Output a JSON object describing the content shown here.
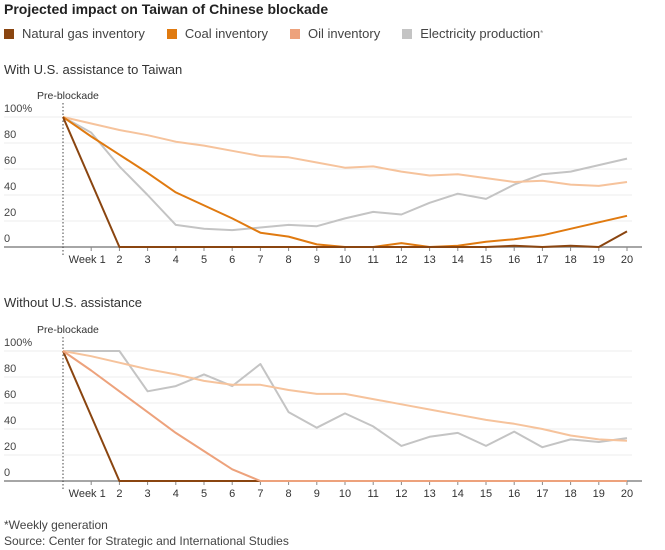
{
  "title": "Projected impact on Taiwan of Chinese blockade",
  "legend": [
    {
      "label": "Natural gas inventory",
      "color": "#8a4510"
    },
    {
      "label": "Coal inventory",
      "color": "#e07a10"
    },
    {
      "label": "Oil inventory",
      "color": "#eda27c"
    },
    {
      "label": "Electricity production",
      "color": "#c4c4c4",
      "footnote_mark": "*"
    }
  ],
  "footnote": "*Weekly generation",
  "source": "Source: Center for Strategic and International Studies",
  "chart_data": [
    {
      "type": "line",
      "title": "With U.S. assistance to Taiwan",
      "marker_label": "Pre-blockade",
      "x_tick_labels": [
        "Week 1",
        "2",
        "3",
        "4",
        "5",
        "6",
        "7",
        "8",
        "9",
        "10",
        "11",
        "12",
        "13",
        "14",
        "15",
        "16",
        "17",
        "18",
        "19",
        "20"
      ],
      "y_tick_labels": [
        "100%",
        "80",
        "60",
        "40",
        "20",
        "0"
      ],
      "ylim": [
        0,
        100
      ],
      "grid": true,
      "series": [
        {
          "name": "Electricity production",
          "color": "#c4c4c4",
          "values": [
            100,
            88,
            62,
            40,
            17,
            14,
            13,
            15,
            17,
            16,
            22,
            27,
            25,
            34,
            41,
            37,
            48,
            56,
            58,
            63,
            68
          ]
        },
        {
          "name": "",
          "color": "#f6c39c",
          "values": [
            100,
            95,
            90,
            86,
            81,
            78,
            74,
            70,
            69,
            65,
            61,
            62,
            58,
            55,
            56,
            53,
            50,
            51,
            48,
            47,
            50
          ]
        },
        {
          "name": "Coal inventory",
          "color": "#e07a10",
          "values": [
            100,
            85,
            71,
            57,
            42,
            32,
            22,
            11,
            8,
            2,
            0,
            0,
            3,
            0,
            1,
            4,
            6,
            9,
            14,
            19,
            24
          ]
        },
        {
          "name": "Natural gas inventory",
          "color": "#8a4510",
          "values": [
            100,
            50,
            0,
            0,
            0,
            0,
            0,
            0,
            0,
            0,
            0,
            0,
            0,
            0,
            0,
            0,
            1,
            0,
            1,
            0,
            12
          ]
        }
      ]
    },
    {
      "type": "line",
      "title": "Without U.S. assistance",
      "marker_label": "Pre-blockade",
      "x_tick_labels": [
        "Week 1",
        "2",
        "3",
        "4",
        "5",
        "6",
        "7",
        "8",
        "9",
        "10",
        "11",
        "12",
        "13",
        "14",
        "15",
        "16",
        "17",
        "18",
        "19",
        "20"
      ],
      "y_tick_labels": [
        "100%",
        "80",
        "60",
        "40",
        "20",
        "0"
      ],
      "ylim": [
        0,
        100
      ],
      "grid": true,
      "series": [
        {
          "name": "Electricity production",
          "color": "#c4c4c4",
          "values": [
            100,
            100,
            100,
            69,
            73,
            82,
            73,
            90,
            53,
            41,
            52,
            42,
            27,
            34,
            37,
            27,
            38,
            26,
            32,
            30,
            33
          ]
        },
        {
          "name": "",
          "color": "#f6c39c",
          "values": [
            100,
            96,
            91,
            86,
            82,
            77,
            74,
            74,
            70,
            67,
            67,
            63,
            59,
            55,
            51,
            47,
            44,
            40,
            35,
            32,
            31
          ]
        },
        {
          "name": "Natural gas inventory",
          "color": "#8a4510",
          "values": [
            100,
            50,
            0,
            0,
            0,
            0,
            0,
            0,
            0,
            0,
            0,
            0,
            0,
            0,
            0,
            0,
            0,
            0,
            0,
            0,
            0
          ]
        },
        {
          "name": "Oil inventory",
          "color": "#eda27c",
          "values": [
            100,
            85,
            69,
            53,
            37,
            23,
            9,
            0,
            0,
            0,
            0,
            0,
            0,
            0,
            0,
            0,
            0,
            0,
            0,
            0,
            0
          ]
        }
      ]
    }
  ]
}
